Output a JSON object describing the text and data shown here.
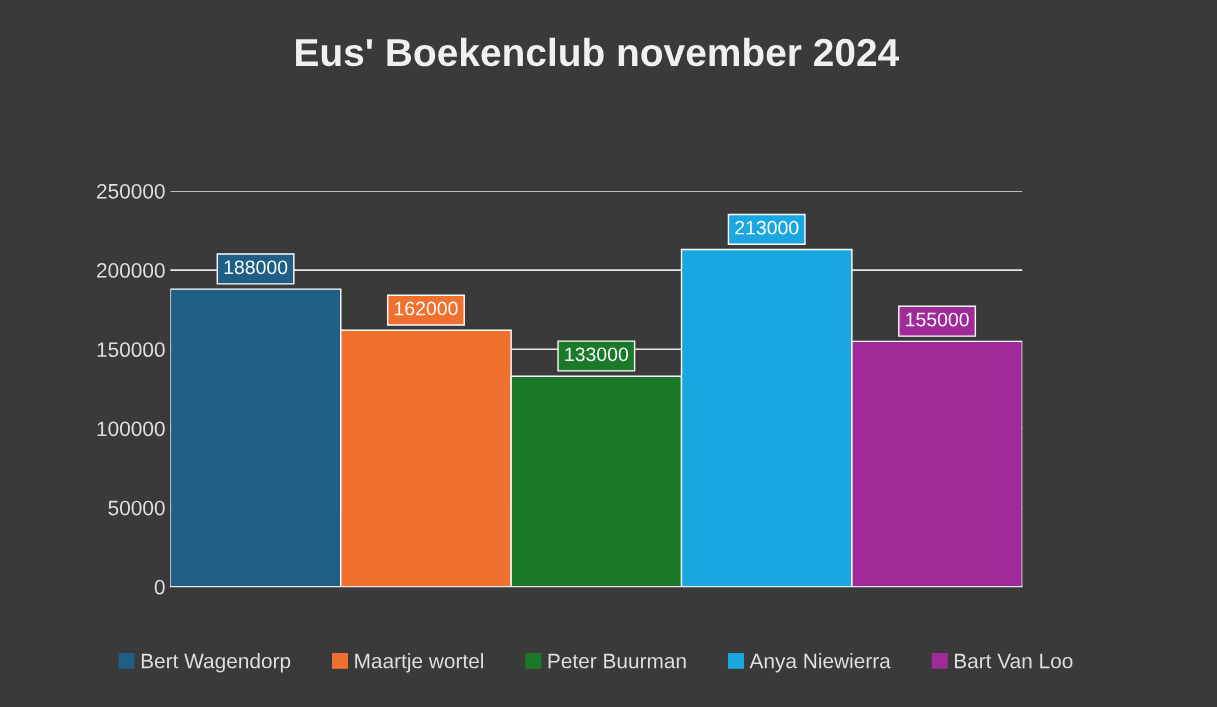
{
  "chart_data": {
    "type": "bar",
    "title": "Eus' Boekenclub november 2024",
    "categories": [
      null
    ],
    "series": [
      {
        "name": "Bert Wagendorp",
        "color": "#1f5f86",
        "values": [
          188000
        ]
      },
      {
        "name": "Maartje wortel",
        "color": "#f07030",
        "values": [
          162000
        ]
      },
      {
        "name": "Peter Buurman",
        "color": "#1a7a2a",
        "values": [
          133000
        ]
      },
      {
        "name": "Anya Niewierra",
        "color": "#1aa6e0",
        "values": [
          213000
        ]
      },
      {
        "name": "Bart Van Loo",
        "color": "#a02a9a",
        "values": [
          155000
        ]
      }
    ],
    "ylim": [
      0,
      250000
    ],
    "yticks": [
      0,
      50000,
      100000,
      150000,
      200000,
      250000
    ],
    "grid": "y",
    "legend": "bottom",
    "data_labels": true
  }
}
